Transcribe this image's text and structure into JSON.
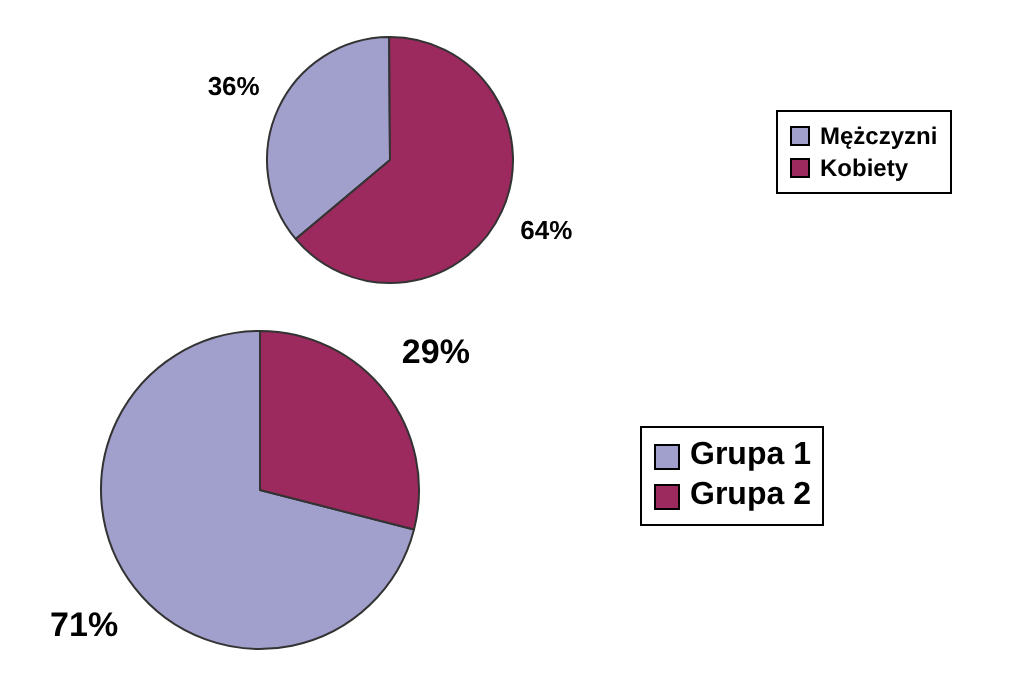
{
  "chart_data": [
    {
      "type": "pie",
      "categories": [
        "Mężczyzni",
        "Kobiety"
      ],
      "values": [
        36,
        64
      ],
      "colors": [
        "#a19fcb",
        "#9c2a5e"
      ],
      "value_labels": [
        "36%",
        "64%"
      ],
      "legend": "right"
    },
    {
      "type": "pie",
      "categories": [
        "Grupa 1",
        "Grupa 2"
      ],
      "values": [
        71,
        29
      ],
      "colors": [
        "#a19fcb",
        "#9c2a5e"
      ],
      "value_labels": [
        "71%",
        "29%"
      ],
      "legend": "right"
    }
  ]
}
